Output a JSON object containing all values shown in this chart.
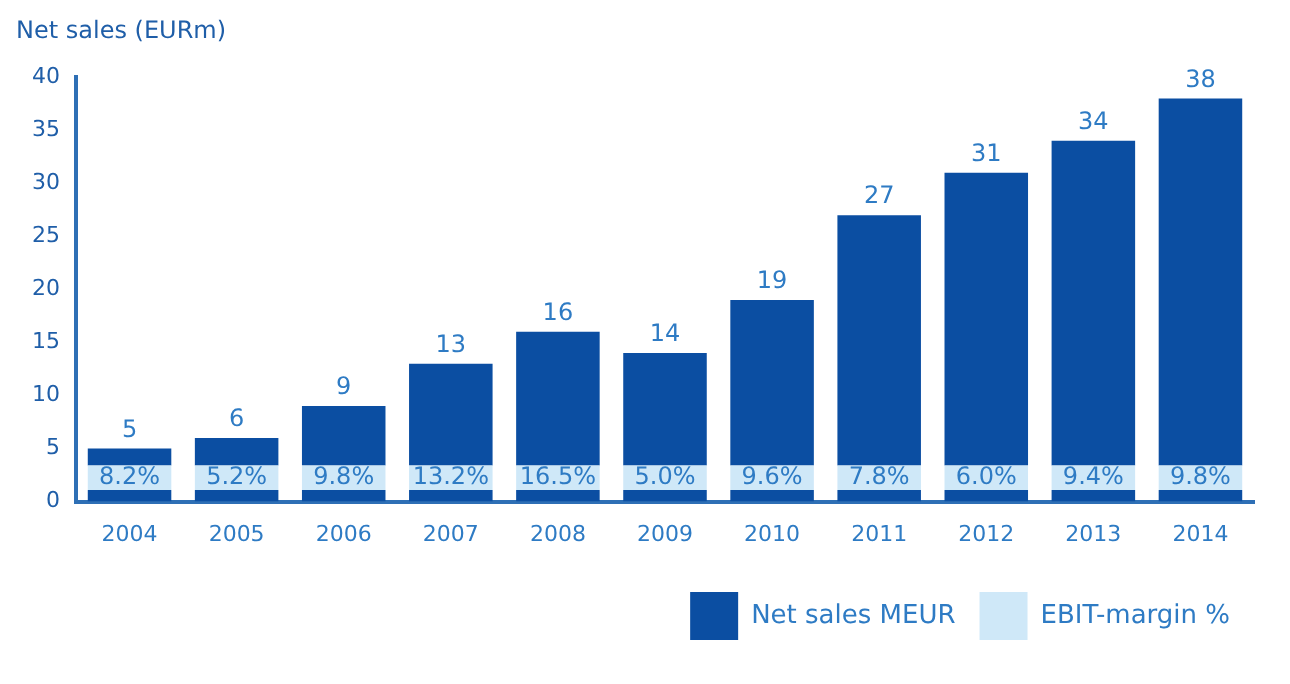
{
  "chart_data": {
    "type": "bar",
    "ylabel": "Net sales (EURm)",
    "categories": [
      "2004",
      "2005",
      "2006",
      "2007",
      "2008",
      "2009",
      "2010",
      "2011",
      "2012",
      "2013",
      "2014"
    ],
    "stacked": true,
    "series": [
      {
        "color": "#0b4ea2",
        "values": [
          1.1,
          1.1,
          1.1,
          1.1,
          1.1,
          1.1,
          1.1,
          1.1,
          1.1,
          1.1,
          1.1
        ]
      },
      {
        "name": "EBIT-margin %",
        "color": "#cfe8f8",
        "values": [
          2.3,
          2.3,
          2.3,
          2.3,
          2.3,
          2.3,
          2.3,
          2.3,
          2.3,
          2.3,
          2.3
        ]
      },
      {
        "name": "Net sales MEUR",
        "color": "#0b4ea2",
        "values": [
          1.6,
          2.6,
          5.6,
          9.6,
          12.6,
          10.6,
          15.6,
          23.6,
          27.6,
          30.6,
          34.6
        ]
      }
    ],
    "totals": [
      "5",
      "6",
      "9",
      "13",
      "16",
      "14",
      "19",
      "27",
      "31",
      "34",
      "38"
    ],
    "ylim": [
      0,
      40
    ],
    "yticks": [
      0,
      5,
      10,
      15,
      20,
      25,
      30,
      35,
      40
    ],
    "annotations": [
      "8.2%",
      "5.2%",
      "9.8%",
      "13.2%",
      "16.5%",
      "5.0%",
      "9.6%",
      "7.8%",
      "6.0%",
      "9.4%",
      "9.8%"
    ],
    "grid": false,
    "legend": "bottom right"
  }
}
